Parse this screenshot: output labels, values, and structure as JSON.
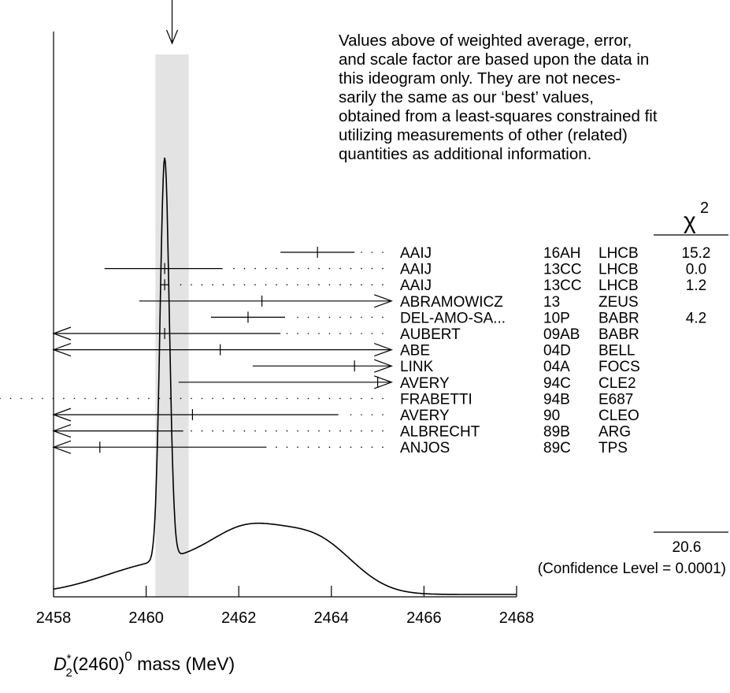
{
  "chart_data": {
    "type": "ideogram",
    "xlabel": {
      "symbol": "D",
      "sub": "2",
      "sup_star": "*",
      "middle": "(2460)",
      "sup_zero": "0",
      "tail": " mass (MeV)"
    },
    "xlim": [
      2458,
      2468
    ],
    "x_ticks": [
      "2458",
      "2460",
      "2462",
      "2464",
      "2466",
      "2468"
    ],
    "weighted_average": 2460.56,
    "band": [
      2460.2,
      2460.92
    ],
    "note_lines": [
      "Values above of weighted average, error,",
      "and scale factor are based upon the data in",
      "this ideogram only.  They are not neces-",
      "sarily the same as our ‘best’ values,",
      "obtained from a least-squares constrained fit",
      "utilizing measurements of other (related)",
      "quantities as additional information."
    ],
    "chi2_header": {
      "symbol": "χ",
      "sup": "2"
    },
    "chi2_total": "20.6",
    "confidence_text": "(Confidence Level = 0.0001)",
    "measurements": [
      {
        "author": "AAIJ",
        "year": "16AH",
        "exp": "LHCB",
        "chi2": "15.2",
        "value": 2463.7,
        "lo": 2462.9,
        "hi": 2464.5,
        "left_arrow": false,
        "right_arrow": false
      },
      {
        "author": "AAIJ",
        "year": "13CC",
        "exp": "LHCB",
        "chi2": "0.0",
        "value": 2460.4,
        "lo": 2459.1,
        "hi": 2461.65,
        "left_arrow": false,
        "right_arrow": false
      },
      {
        "author": "AAIJ",
        "year": "13CC",
        "exp": "LHCB",
        "chi2": "1.2",
        "value": 2460.4,
        "lo": 2460.3,
        "hi": 2460.5,
        "left_arrow": false,
        "right_arrow": false
      },
      {
        "author": "ABRAMOWICZ",
        "year": "13",
        "exp": "ZEUS",
        "chi2": "",
        "value": 2462.5,
        "lo": 2459.85,
        "hi": 2465.3,
        "left_arrow": false,
        "right_arrow": true
      },
      {
        "author": "DEL-AMO-SA...",
        "year": "10P",
        "exp": "BABR",
        "chi2": "4.2",
        "value": 2462.2,
        "lo": 2461.4,
        "hi": 2463.0,
        "left_arrow": false,
        "right_arrow": false
      },
      {
        "author": "AUBERT",
        "year": "09AB",
        "exp": "BABR",
        "chi2": "",
        "value": 2460.4,
        "lo": 2458.0,
        "hi": 2462.9,
        "left_arrow": true,
        "right_arrow": false
      },
      {
        "author": "ABE",
        "year": "04D",
        "exp": "BELL",
        "chi2": "",
        "value": 2461.6,
        "lo": 2458.0,
        "hi": 2465.3,
        "left_arrow": true,
        "right_arrow": true
      },
      {
        "author": "LINK",
        "year": "04A",
        "exp": "FOCS",
        "chi2": "",
        "value": 2464.5,
        "lo": 2462.3,
        "hi": 2465.3,
        "left_arrow": false,
        "right_arrow": true
      },
      {
        "author": "AVERY",
        "year": "94C",
        "exp": "CLE2",
        "chi2": "",
        "value": 2465.0,
        "lo": 2460.7,
        "hi": 2465.3,
        "left_arrow": false,
        "right_arrow": true
      },
      {
        "author": "FRABETTI",
        "year": "94B",
        "exp": "E687",
        "chi2": "",
        "value": null,
        "lo": null,
        "hi": null,
        "left_arrow": false,
        "right_arrow": false
      },
      {
        "author": "AVERY",
        "year": "90",
        "exp": "CLEO",
        "chi2": "",
        "value": 2461.0,
        "lo": 2458.0,
        "hi": 2464.15,
        "left_arrow": true,
        "right_arrow": false
      },
      {
        "author": "ALBRECHT",
        "year": "89B",
        "exp": "ARG",
        "chi2": "",
        "value": null,
        "lo": 2458.0,
        "hi": 2460.8,
        "left_arrow": true,
        "right_arrow": false
      },
      {
        "author": "ANJOS",
        "year": "89C",
        "exp": "TPS",
        "chi2": "",
        "value": 2459.0,
        "lo": 2458.0,
        "hi": 2462.6,
        "left_arrow": true,
        "right_arrow": false
      }
    ]
  }
}
